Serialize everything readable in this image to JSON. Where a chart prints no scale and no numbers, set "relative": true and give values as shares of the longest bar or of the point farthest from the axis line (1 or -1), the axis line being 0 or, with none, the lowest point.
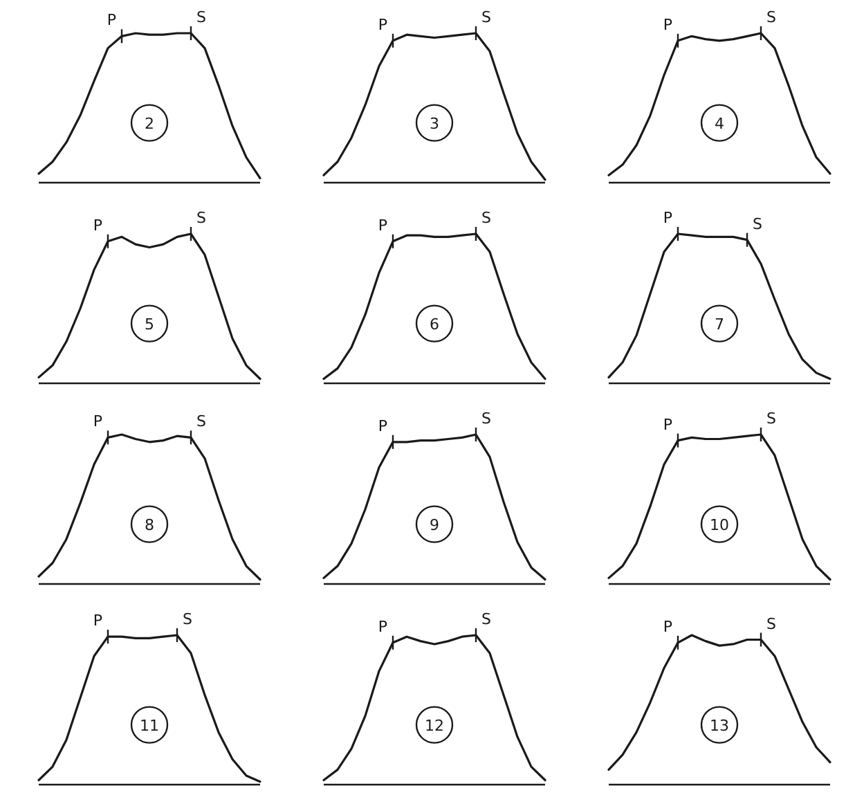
{
  "chart_data": [
    {
      "type": "line",
      "title": "2",
      "relative": true,
      "color": "#1a1a1a",
      "categories": [
        null,
        null,
        null,
        null,
        null,
        null,
        null,
        null,
        null,
        null,
        null,
        null,
        null,
        null,
        null,
        null,
        null
      ],
      "values": [
        0.06,
        0.14,
        0.27,
        0.45,
        0.68,
        0.9,
        0.98,
        1,
        0.99,
        0.99,
        1,
        1,
        0.9,
        0.65,
        0.38,
        0.17,
        0.03
      ],
      "annotations": [
        "P",
        "S"
      ]
    },
    {
      "type": "line",
      "title": "3",
      "relative": true,
      "color": "#1a1a1a",
      "categories": [
        null,
        null,
        null,
        null,
        null,
        null,
        null,
        null,
        null,
        null,
        null,
        null,
        null,
        null,
        null,
        null,
        null
      ],
      "values": [
        0.05,
        0.14,
        0.3,
        0.52,
        0.78,
        0.95,
        0.99,
        0.98,
        0.97,
        0.98,
        0.99,
        1,
        0.88,
        0.6,
        0.33,
        0.14,
        0.02
      ],
      "annotations": [
        "P",
        "S"
      ]
    },
    {
      "type": "line",
      "title": "4",
      "relative": true,
      "color": "#1a1a1a",
      "categories": [
        null,
        null,
        null,
        null,
        null,
        null,
        null,
        null,
        null,
        null,
        null,
        null,
        null,
        null,
        null,
        null,
        null
      ],
      "values": [
        0.05,
        0.12,
        0.25,
        0.45,
        0.72,
        0.95,
        0.98,
        0.96,
        0.95,
        0.96,
        0.98,
        1,
        0.9,
        0.65,
        0.38,
        0.17,
        0.06
      ],
      "annotations": [
        "P",
        "S"
      ]
    },
    {
      "type": "line",
      "title": "5",
      "relative": true,
      "color": "#1a1a1a",
      "categories": [
        null,
        null,
        null,
        null,
        null,
        null,
        null,
        null,
        null,
        null,
        null,
        null,
        null,
        null,
        null,
        null,
        null
      ],
      "values": [
        0.04,
        0.12,
        0.28,
        0.5,
        0.76,
        0.95,
        0.98,
        0.93,
        0.91,
        0.93,
        0.98,
        1,
        0.86,
        0.58,
        0.3,
        0.12,
        0.03
      ],
      "annotations": [
        "P",
        "S"
      ]
    },
    {
      "type": "line",
      "title": "6",
      "relative": true,
      "color": "#1a1a1a",
      "categories": [
        null,
        null,
        null,
        null,
        null,
        null,
        null,
        null,
        null,
        null,
        null,
        null,
        null,
        null,
        null,
        null,
        null
      ],
      "values": [
        0.03,
        0.1,
        0.24,
        0.46,
        0.74,
        0.95,
        0.99,
        0.99,
        0.98,
        0.98,
        0.99,
        1,
        0.88,
        0.6,
        0.33,
        0.14,
        0.03
      ],
      "annotations": [
        "P",
        "S"
      ]
    },
    {
      "type": "line",
      "title": "7",
      "relative": true,
      "color": "#1a1a1a",
      "categories": [
        null,
        null,
        null,
        null,
        null,
        null,
        null,
        null,
        null,
        null,
        null,
        null,
        null,
        null,
        null,
        null,
        null
      ],
      "values": [
        0.04,
        0.14,
        0.32,
        0.6,
        0.88,
        1,
        0.99,
        0.98,
        0.98,
        0.98,
        0.96,
        0.8,
        0.56,
        0.33,
        0.16,
        0.07,
        0.03
      ],
      "annotations": [
        "P",
        "S"
      ]
    },
    {
      "type": "line",
      "title": "8",
      "relative": true,
      "color": "#1a1a1a",
      "categories": [
        null,
        null,
        null,
        null,
        null,
        null,
        null,
        null,
        null,
        null,
        null,
        null,
        null,
        null,
        null,
        null,
        null
      ],
      "values": [
        0.05,
        0.14,
        0.3,
        0.54,
        0.8,
        0.98,
        1,
        0.97,
        0.95,
        0.96,
        0.99,
        0.98,
        0.84,
        0.56,
        0.3,
        0.12,
        0.03
      ],
      "annotations": [
        "P",
        "S"
      ]
    },
    {
      "type": "line",
      "title": "9",
      "relative": true,
      "color": "#1a1a1a",
      "categories": [
        null,
        null,
        null,
        null,
        null,
        null,
        null,
        null,
        null,
        null,
        null,
        null,
        null,
        null,
        null,
        null,
        null
      ],
      "values": [
        0.04,
        0.12,
        0.27,
        0.5,
        0.78,
        0.95,
        0.95,
        0.96,
        0.96,
        0.97,
        0.98,
        1,
        0.85,
        0.55,
        0.28,
        0.11,
        0.03
      ],
      "annotations": [
        "P",
        "S"
      ]
    },
    {
      "type": "line",
      "title": "10",
      "relative": true,
      "color": "#1a1a1a",
      "categories": [
        null,
        null,
        null,
        null,
        null,
        null,
        null,
        null,
        null,
        null,
        null,
        null,
        null,
        null,
        null,
        null,
        null
      ],
      "values": [
        0.04,
        0.12,
        0.27,
        0.52,
        0.8,
        0.96,
        0.98,
        0.97,
        0.97,
        0.98,
        0.99,
        1,
        0.86,
        0.58,
        0.3,
        0.12,
        0.03
      ],
      "annotations": [
        "P",
        "S"
      ]
    },
    {
      "type": "line",
      "title": "11",
      "relative": true,
      "color": "#1a1a1a",
      "categories": [
        null,
        null,
        null,
        null,
        null,
        null,
        null,
        null,
        null,
        null,
        null,
        null,
        null,
        null,
        null,
        null,
        null
      ],
      "values": [
        0.03,
        0.12,
        0.3,
        0.58,
        0.86,
        0.99,
        0.99,
        0.98,
        0.98,
        0.99,
        1,
        0.88,
        0.6,
        0.35,
        0.17,
        0.06,
        0.02
      ],
      "annotations": [
        "P",
        "S"
      ]
    },
    {
      "type": "line",
      "title": "12",
      "relative": true,
      "color": "#1a1a1a",
      "categories": [
        null,
        null,
        null,
        null,
        null,
        null,
        null,
        null,
        null,
        null,
        null,
        null,
        null,
        null,
        null,
        null,
        null
      ],
      "values": [
        0.03,
        0.1,
        0.24,
        0.46,
        0.76,
        0.95,
        0.99,
        0.96,
        0.94,
        0.96,
        0.99,
        1,
        0.88,
        0.6,
        0.32,
        0.12,
        0.03
      ],
      "annotations": [
        "P",
        "S"
      ]
    },
    {
      "type": "line",
      "title": "13",
      "relative": true,
      "color": "#1a1a1a",
      "categories": [
        null,
        null,
        null,
        null,
        null,
        null,
        null,
        null,
        null,
        null,
        null,
        null,
        null,
        null,
        null,
        null,
        null
      ],
      "values": [
        0.1,
        0.2,
        0.35,
        0.55,
        0.78,
        0.95,
        1,
        0.96,
        0.93,
        0.94,
        0.97,
        0.97,
        0.86,
        0.64,
        0.42,
        0.25,
        0.15
      ],
      "annotations": [
        "P",
        "S"
      ]
    }
  ]
}
